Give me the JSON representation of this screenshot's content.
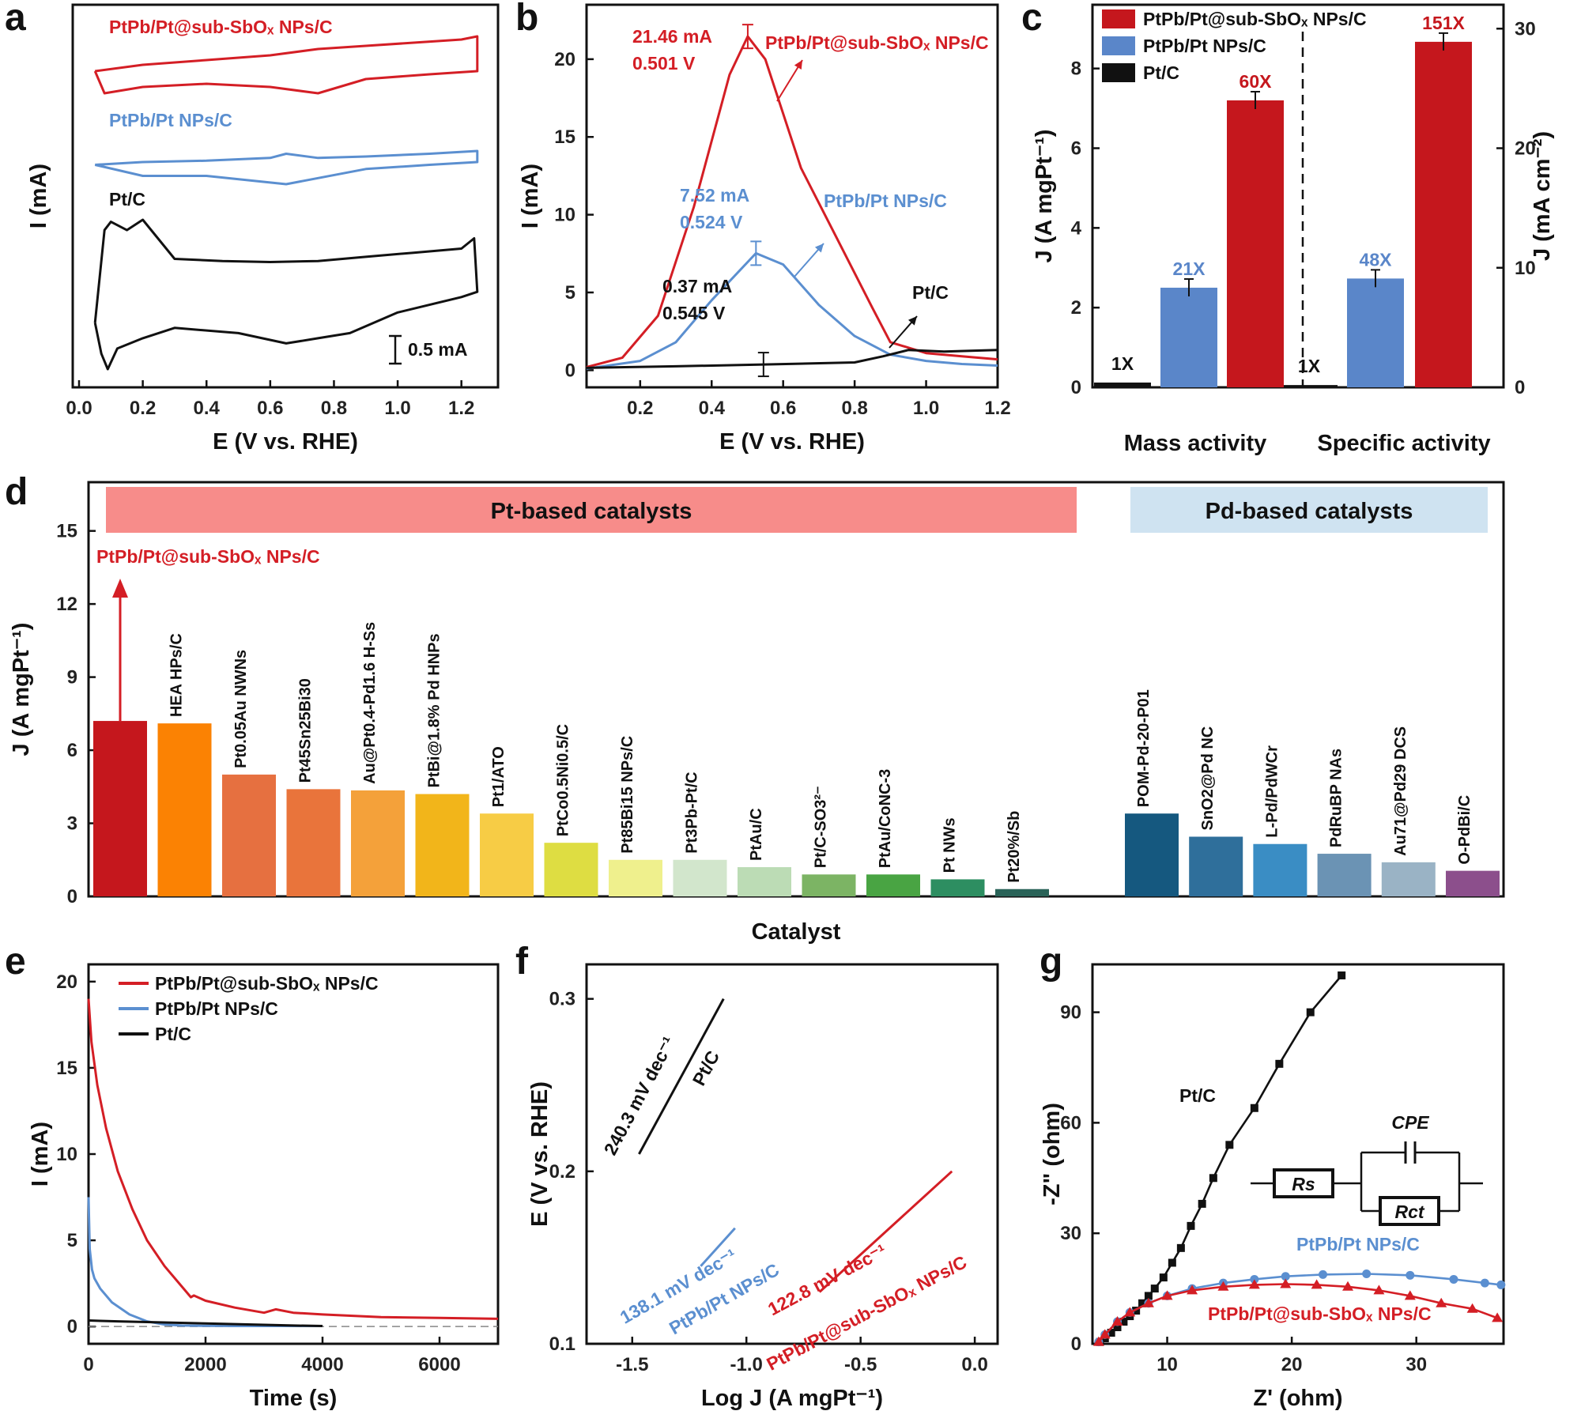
{
  "colors": {
    "red": "#d41e25",
    "blue": "#5b8fd0",
    "black": "#111111"
  },
  "chart_data": [
    {
      "panel": "a",
      "type": "line",
      "xlabel": "E (V vs. RHE)",
      "ylabel": "I (mA)",
      "xlim": [
        0,
        1.3
      ],
      "xticks": [
        "0.0",
        "0.2",
        "0.4",
        "0.6",
        "0.8",
        "1.0",
        "1.2"
      ],
      "scale_bar": "0.5 mA",
      "series": [
        {
          "name": "PtPb/Pt@sub-SbOₓ NPs/C",
          "color": "#d41e25",
          "x": [
            0.05,
            0.2,
            0.4,
            0.6,
            0.75,
            0.9,
            1.05,
            1.2,
            1.25,
            1.25,
            1.1,
            0.9,
            0.75,
            0.6,
            0.4,
            0.2,
            0.08,
            0.05
          ],
          "y": [
            0.1,
            0.14,
            0.17,
            0.2,
            0.24,
            0.26,
            0.28,
            0.3,
            0.32,
            0.1,
            0.08,
            0.05,
            -0.04,
            0.0,
            0.02,
            0.0,
            -0.04,
            0.1
          ]
        },
        {
          "name": "PtPb/Pt NPs/C",
          "color": "#5b8fd0",
          "x": [
            0.05,
            0.2,
            0.4,
            0.6,
            0.65,
            0.75,
            0.9,
            1.1,
            1.25,
            1.25,
            1.1,
            0.9,
            0.65,
            0.4,
            0.2,
            0.05
          ],
          "y": [
            0.08,
            0.1,
            0.11,
            0.13,
            0.16,
            0.13,
            0.14,
            0.16,
            0.18,
            0.1,
            0.08,
            0.05,
            -0.06,
            0.0,
            0.0,
            0.08
          ]
        },
        {
          "name": "Pt/C",
          "color": "#111111",
          "x": [
            0.05,
            0.08,
            0.1,
            0.15,
            0.2,
            0.3,
            0.45,
            0.6,
            0.75,
            0.9,
            1.05,
            1.2,
            1.24,
            1.25,
            1.2,
            1.0,
            0.85,
            0.75,
            0.65,
            0.5,
            0.3,
            0.2,
            0.12,
            0.09,
            0.07,
            0.05
          ],
          "y": [
            -0.3,
            0.6,
            0.68,
            0.6,
            0.7,
            0.32,
            0.3,
            0.29,
            0.3,
            0.34,
            0.38,
            0.42,
            0.52,
            0.0,
            -0.05,
            -0.2,
            -0.4,
            -0.45,
            -0.5,
            -0.4,
            -0.35,
            -0.45,
            -0.55,
            -0.75,
            -0.6,
            -0.3
          ]
        }
      ]
    },
    {
      "panel": "b",
      "type": "line",
      "xlabel": "E (V vs. RHE)",
      "ylabel": "I (mA)",
      "xlim": [
        0.05,
        1.2
      ],
      "ylim": [
        -1.1,
        23.5
      ],
      "xticks": [
        0.2,
        0.4,
        0.6,
        0.8,
        1.0,
        1.2
      ],
      "yticks": [
        0,
        5,
        10,
        15,
        20
      ],
      "series": [
        {
          "name": "PtPb/Pt@sub-SbOₓ NPs/C",
          "color": "#d41e25",
          "x": [
            0.05,
            0.15,
            0.25,
            0.35,
            0.45,
            0.501,
            0.55,
            0.65,
            0.75,
            0.85,
            0.9,
            1.0,
            1.1,
            1.2
          ],
          "y": [
            0.2,
            0.8,
            3.5,
            10.5,
            19,
            21.46,
            20,
            13,
            8.5,
            4,
            1.8,
            1.1,
            0.9,
            0.7
          ]
        },
        {
          "name": "PtPb/Pt NPs/C",
          "color": "#5b8fd0",
          "x": [
            0.05,
            0.2,
            0.3,
            0.4,
            0.524,
            0.6,
            0.7,
            0.8,
            0.9,
            1.0,
            1.1,
            1.2
          ],
          "y": [
            0.1,
            0.6,
            1.8,
            4.5,
            7.52,
            6.8,
            4.2,
            2.2,
            1.0,
            0.6,
            0.4,
            0.3
          ]
        },
        {
          "name": "Pt/C",
          "color": "#111111",
          "x": [
            0.05,
            0.3,
            0.545,
            0.8,
            0.88,
            0.95,
            1.05,
            1.2
          ],
          "y": [
            0.15,
            0.25,
            0.37,
            0.5,
            0.9,
            1.3,
            1.2,
            1.3
          ]
        }
      ],
      "annotations": [
        {
          "text": "21.46 mA",
          "text2": "0.501 V",
          "color": "#d41e25"
        },
        {
          "text": "7.52 mA",
          "text2": "0.524 V",
          "color": "#5b8fd0"
        },
        {
          "text": "0.37 mA",
          "text2": "0.545 V",
          "color": "#111111"
        }
      ],
      "labels": [
        "PtPb/Pt@sub-SbOₓ NPs/C",
        "PtPb/Pt NPs/C",
        "Pt/C"
      ]
    },
    {
      "panel": "c",
      "type": "bar",
      "groups": [
        "Mass activity",
        "Specific activity"
      ],
      "ylabel": "J (A mgPt⁻¹)",
      "y2label": "J (mA cm⁻²)",
      "ylim": [
        0,
        9.6
      ],
      "yticks": [
        0,
        2,
        4,
        6,
        8
      ],
      "y2lim": [
        0,
        32
      ],
      "y2ticks": [
        0,
        10,
        20,
        30
      ],
      "series": [
        {
          "name": "PtPb/Pt@sub-SbOₓ NPs/C",
          "color": "#c5171d",
          "mass": 7.2,
          "specific": 28.9,
          "labels": [
            "60X",
            "151X"
          ]
        },
        {
          "name": "PtPb/Pt NPs/C",
          "color": "#5a86c9",
          "mass": 2.5,
          "specific": 9.1,
          "labels": [
            "21X",
            "48X"
          ]
        },
        {
          "name": "Pt/C",
          "color": "#111111",
          "mass": 0.12,
          "specific": 0.19,
          "labels": [
            "1X",
            "1X"
          ]
        }
      ]
    },
    {
      "panel": "d",
      "type": "bar",
      "xlabel": "Catalyst",
      "ylabel": "J (A mgPt⁻¹)",
      "ylim": [
        0,
        17
      ],
      "yticks": [
        0,
        3,
        6,
        9,
        12,
        15
      ],
      "groups": [
        {
          "label": "Pt-based catalysts",
          "color": "#f78c8a"
        },
        {
          "label": "Pd-based catalysts",
          "color": "#cfe3f1"
        }
      ],
      "highlight": "PtPb/Pt@sub-SbOₓ NPs/C",
      "categories": [
        "PtPb/Pt@sub-SbOₓ NPs/C",
        "HEA HPs/C",
        "Pt0.05Au NWNs",
        "Pt45Sn25Bi30",
        "Au@Pt0.4-Pd1.6 H-Ss",
        "PtBi@1.8% Pd HNPs",
        "Pt1/ATO",
        "PtCo0.5Ni0.5/C",
        "Pt85Bi15 NPs/C",
        "Pt3Pb-Pt/C",
        "PtAu/C",
        "Pt/C-SO3²⁻",
        "PtAu/CoNC-3",
        "Pt NWs",
        "Pt20%/Sb",
        "POM-Pd-20-P01",
        "SnO2@Pd NC",
        "L-Pd/PdWCr",
        "PdRuBP NAs",
        "Au71@Pd29 DCS",
        "O-PdBi/C"
      ],
      "values": [
        7.2,
        7.1,
        5.0,
        4.4,
        4.35,
        4.2,
        3.4,
        2.2,
        1.5,
        1.5,
        1.2,
        0.9,
        0.9,
        0.7,
        0.3,
        3.4,
        2.45,
        2.15,
        1.75,
        1.4,
        1.05
      ],
      "colors": [
        "#c5171d",
        "#fb8203",
        "#e67040",
        "#e9743b",
        "#f4a13a",
        "#f2b51a",
        "#f7cc45",
        "#dedd42",
        "#eff08d",
        "#d2e6cc",
        "#bcdcb5",
        "#7cb464",
        "#49a443",
        "#2d8e61",
        "#2a6358",
        "#15587f",
        "#2f6f9b",
        "#3a8dc4",
        "#6b93b4",
        "#9ab3c5",
        "#8c4f8c"
      ]
    },
    {
      "panel": "e",
      "type": "line",
      "xlabel": "Time (s)",
      "ylabel": "I (mA)",
      "xlim": [
        0,
        7000
      ],
      "ylim": [
        -1,
        21
      ],
      "xticks": [
        0,
        2000,
        4000,
        6000
      ],
      "yticks": [
        0,
        5,
        10,
        15,
        20
      ],
      "series": [
        {
          "name": "PtPb/Pt@sub-SbOₓ NPs/C",
          "color": "#d41e25",
          "x": [
            0,
            50,
            150,
            300,
            500,
            750,
            1000,
            1300,
            1600,
            1750,
            1800,
            2000,
            2500,
            3000,
            3200,
            3500,
            4000,
            5000,
            6000,
            7000
          ],
          "y": [
            19,
            16.5,
            14,
            11.5,
            9,
            6.8,
            5,
            3.5,
            2.3,
            1.7,
            1.8,
            1.5,
            1.1,
            0.8,
            1.0,
            0.8,
            0.7,
            0.55,
            0.5,
            0.45
          ]
        },
        {
          "name": "PtPb/Pt NPs/C",
          "color": "#5b8fd0",
          "x": [
            0,
            20,
            60,
            100,
            200,
            400,
            700,
            1000,
            1300,
            1600,
            2000,
            2500,
            3000,
            4000
          ],
          "y": [
            7.5,
            4.5,
            3.3,
            2.8,
            2.2,
            1.4,
            0.7,
            0.3,
            0.12,
            0.06,
            0.04,
            0.03,
            0.03,
            0.03
          ]
        },
        {
          "name": "Pt/C",
          "color": "#111111",
          "x": [
            0,
            200,
            500,
            1000,
            1500,
            2000,
            2500,
            3000,
            3500,
            4000
          ],
          "y": [
            0.35,
            0.33,
            0.3,
            0.26,
            0.22,
            0.18,
            0.14,
            0.1,
            0.06,
            0.03
          ]
        }
      ],
      "legend": [
        "PtPb/Pt@sub-SbOₓ NPs/C",
        "PtPb/Pt NPs/C",
        "Pt/C"
      ]
    },
    {
      "panel": "f",
      "type": "line",
      "xlabel": "Log J (A mgPt⁻¹)",
      "ylabel": "E (V vs. RHE)",
      "xlim": [
        -1.7,
        0.1
      ],
      "ylim": [
        0.1,
        0.32
      ],
      "xticks": [
        "-1.5",
        "-1.0",
        "-0.5",
        "0.0"
      ],
      "yticks": [
        "0.1",
        "0.2",
        "0.3"
      ],
      "series": [
        {
          "name": "Pt/C",
          "slope_label": "240.3 mV dec⁻¹",
          "color": "#111111",
          "x": [
            -1.47,
            -1.1
          ],
          "y": [
            0.21,
            0.3
          ]
        },
        {
          "name": "PtPb/Pt NPs/C",
          "slope_label": "138.1 mV dec⁻¹",
          "color": "#5b8fd0",
          "x": [
            -1.2,
            -1.05
          ],
          "y": [
            0.145,
            0.167
          ]
        },
        {
          "name": "PtPb/Pt@sub-SbOₓ NPs/C",
          "slope_label": "122.8 mV dec⁻¹",
          "color": "#d41e25",
          "x": [
            -0.68,
            -0.1
          ],
          "y": [
            0.13,
            0.2
          ]
        }
      ]
    },
    {
      "panel": "g",
      "type": "scatter",
      "xlabel": "Z' (ohm)",
      "ylabel": "-Z\" (ohm)",
      "xlim": [
        4,
        37
      ],
      "ylim": [
        0,
        103
      ],
      "xticks": [
        10,
        20,
        30
      ],
      "yticks": [
        0,
        30,
        60,
        90
      ],
      "circuit": {
        "rs": "Rs",
        "rct": "Rct",
        "cpe": "CPE"
      },
      "series": [
        {
          "name": "Pt/C",
          "color": "#111111",
          "marker": "square",
          "x": [
            4.6,
            5.0,
            5.5,
            6.0,
            6.5,
            7.0,
            7.5,
            8.0,
            8.5,
            9.0,
            9.7,
            10.4,
            11.1,
            11.9,
            12.8,
            13.7,
            15.0,
            17.0,
            19.0,
            21.5,
            24.0
          ],
          "y": [
            0.5,
            1.5,
            3.0,
            4.5,
            6.0,
            7.5,
            9.0,
            11,
            13,
            15,
            18,
            22,
            26,
            32,
            38,
            45,
            54,
            64,
            76,
            90,
            100
          ]
        },
        {
          "name": "PtPb/Pt NPs/C",
          "color": "#5b8fd0",
          "marker": "circle",
          "x": [
            4.5,
            5.0,
            6.0,
            7.0,
            8.5,
            10.0,
            12.0,
            14.5,
            17.0,
            19.5,
            22.5,
            26.0,
            29.5,
            33.0,
            35.5,
            36.8
          ],
          "y": [
            0.5,
            2.5,
            6.0,
            8.5,
            11.0,
            13.0,
            15.0,
            16.5,
            17.5,
            18.3,
            18.8,
            19.0,
            18.6,
            17.5,
            16.5,
            16.0
          ]
        },
        {
          "name": "PtPb/Pt@sub-SbOₓ NPs/C",
          "color": "#d41e25",
          "marker": "triangle",
          "x": [
            4.5,
            5.0,
            6.0,
            7.0,
            8.5,
            10.0,
            12.0,
            14.5,
            17.0,
            19.5,
            22.0,
            24.5,
            27.0,
            29.5,
            32.0,
            34.5,
            36.5
          ],
          "y": [
            0.5,
            2.5,
            6.0,
            8.5,
            11.0,
            13.0,
            14.5,
            15.5,
            16.0,
            16.2,
            16.0,
            15.5,
            14.5,
            13.0,
            11.0,
            9.5,
            7.0
          ]
        }
      ]
    }
  ]
}
